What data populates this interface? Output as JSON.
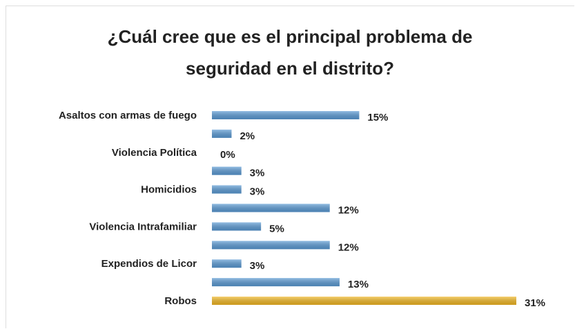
{
  "chart_data": {
    "type": "bar",
    "orientation": "horizontal",
    "title": "¿Cuál cree que es el principal problema de seguridad en el distrito?",
    "categories": [
      "Asaltos con armas de fuego",
      null,
      "Violencia Política",
      null,
      "Homicidios",
      null,
      "Violencia Intrafamiliar",
      null,
      "Expendios de Licor",
      null,
      "Robos"
    ],
    "values": [
      15,
      2,
      0,
      3,
      3,
      12,
      5,
      12,
      3,
      13,
      31
    ],
    "value_labels": [
      "15%",
      "2%",
      "0%",
      "3%",
      "3%",
      "12%",
      "5%",
      "12%",
      "3%",
      "13%",
      "31%"
    ],
    "colors": [
      "#5b9bd5",
      "#5b9bd5",
      "#5b9bd5",
      "#5b9bd5",
      "#5b9bd5",
      "#5b9bd5",
      "#5b9bd5",
      "#5b9bd5",
      "#5b9bd5",
      "#5b9bd5",
      "#f2b824"
    ]
  }
}
